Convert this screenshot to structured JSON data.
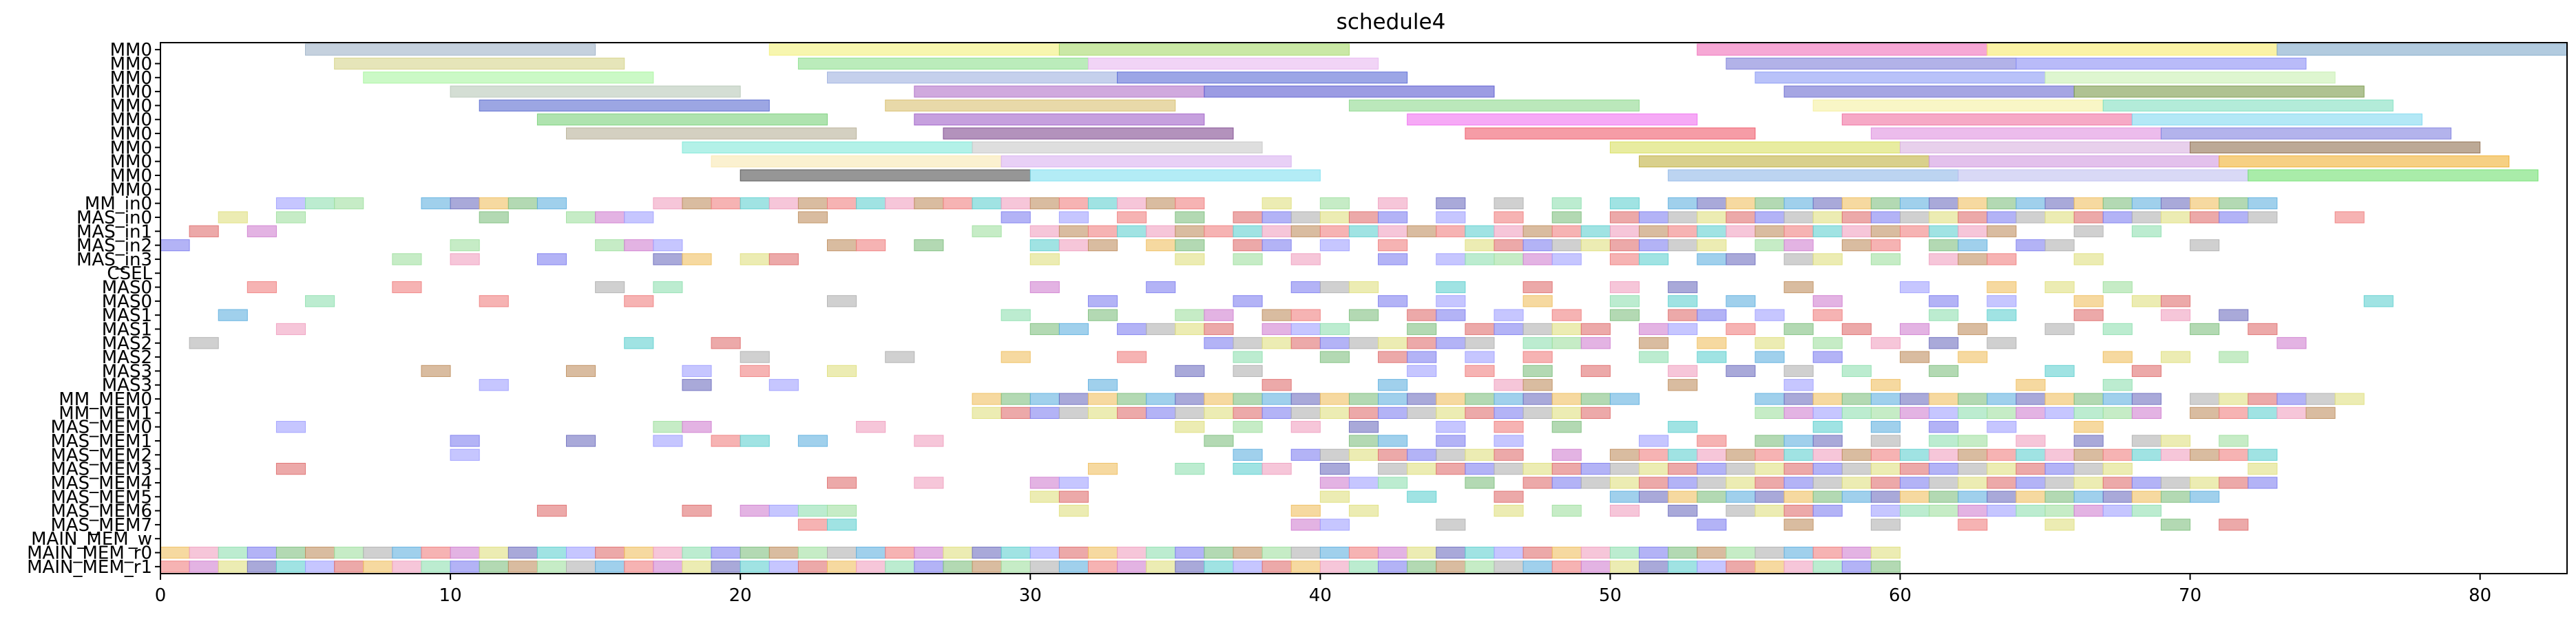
{
  "chart_data": {
    "type": "gantt",
    "title": "schedule4",
    "xlabel": "",
    "ylabel": "",
    "xlim": [
      0,
      83
    ],
    "x_ticks": [
      0,
      10,
      20,
      30,
      40,
      50,
      60,
      70,
      80
    ],
    "grid": false,
    "legend": "none",
    "rows": [
      "MM0",
      "MM0",
      "MM0",
      "MM0",
      "MM0",
      "MM0",
      "MM0",
      "MM0",
      "MM0",
      "MM0",
      "MM0",
      "MM_in0",
      "MAS_in0",
      "MAS_in1",
      "MAS_in2",
      "MAS_in3",
      "CSEL",
      "MAS0",
      "MAS0",
      "MAS1",
      "MAS1",
      "MAS2",
      "MAS2",
      "MAS3",
      "MAS3",
      "MM_MEM0",
      "MM_MEM1",
      "MAS_MEM0",
      "MAS_MEM1",
      "MAS_MEM2",
      "MAS_MEM3",
      "MAS_MEM4",
      "MAS_MEM5",
      "MAS_MEM6",
      "MAS_MEM7",
      "MAIN_MEM_w",
      "MAIN_MEM_r0",
      "MAIN_MEM_r1"
    ],
    "tasks": [
      {
        "row": 0,
        "start": 5,
        "end": 15,
        "color": "#9fb3c8"
      },
      {
        "row": 0,
        "start": 21,
        "end": 31,
        "color": "#f2f07a"
      },
      {
        "row": 0,
        "start": 31,
        "end": 41,
        "color": "#a6d96a"
      },
      {
        "row": 0,
        "start": 53,
        "end": 63,
        "color": "#f06eb9"
      },
      {
        "row": 0,
        "start": 63,
        "end": 73,
        "color": "#f7e96a"
      },
      {
        "row": 0,
        "start": 73,
        "end": 83,
        "color": "#7fa8c9"
      },
      {
        "row": 1,
        "start": 6,
        "end": 16,
        "color": "#d6d48a"
      },
      {
        "row": 1,
        "start": 22,
        "end": 32,
        "color": "#8ee08e"
      },
      {
        "row": 1,
        "start": 32,
        "end": 42,
        "color": "#e8b8f0"
      },
      {
        "row": 1,
        "start": 54,
        "end": 64,
        "color": "#7f7fd9"
      },
      {
        "row": 1,
        "start": 64,
        "end": 74,
        "color": "#8a8ef5"
      },
      {
        "row": 2,
        "start": 7,
        "end": 17,
        "color": "#a8f5a0"
      },
      {
        "row": 2,
        "start": 23,
        "end": 33,
        "color": "#9fb0e0"
      },
      {
        "row": 2,
        "start": 33,
        "end": 43,
        "color": "#5a6ad6"
      },
      {
        "row": 2,
        "start": 55,
        "end": 65,
        "color": "#8a9af5"
      },
      {
        "row": 2,
        "start": 65,
        "end": 75,
        "color": "#c8f0b0"
      },
      {
        "row": 3,
        "start": 10,
        "end": 20,
        "color": "#b8c8b8"
      },
      {
        "row": 3,
        "start": 26,
        "end": 36,
        "color": "#b070c8"
      },
      {
        "row": 3,
        "start": 36,
        "end": 46,
        "color": "#5a5ad0"
      },
      {
        "row": 3,
        "start": 56,
        "end": 66,
        "color": "#6a6ad0"
      },
      {
        "row": 3,
        "start": 66,
        "end": 76,
        "color": "#7a9a4a"
      },
      {
        "row": 4,
        "start": 11,
        "end": 21,
        "color": "#5a6ad0"
      },
      {
        "row": 4,
        "start": 25,
        "end": 35,
        "color": "#d8c070"
      },
      {
        "row": 4,
        "start": 41,
        "end": 51,
        "color": "#8ed88e"
      },
      {
        "row": 4,
        "start": 57,
        "end": 67,
        "color": "#f5f0a0"
      },
      {
        "row": 4,
        "start": 67,
        "end": 77,
        "color": "#80e0c0"
      },
      {
        "row": 5,
        "start": 13,
        "end": 23,
        "color": "#7ad07a"
      },
      {
        "row": 5,
        "start": 26,
        "end": 36,
        "color": "#a060c8"
      },
      {
        "row": 5,
        "start": 43,
        "end": 53,
        "color": "#f070f0"
      },
      {
        "row": 5,
        "start": 58,
        "end": 68,
        "color": "#f070a0"
      },
      {
        "row": 5,
        "start": 68,
        "end": 78,
        "color": "#80d8f0"
      },
      {
        "row": 6,
        "start": 14,
        "end": 24,
        "color": "#b8b098"
      },
      {
        "row": 6,
        "start": 27,
        "end": 37,
        "color": "#804a90"
      },
      {
        "row": 6,
        "start": 45,
        "end": 55,
        "color": "#f05a6a"
      },
      {
        "row": 6,
        "start": 59,
        "end": 69,
        "color": "#e090e0"
      },
      {
        "row": 6,
        "start": 69,
        "end": 79,
        "color": "#8080e0"
      },
      {
        "row": 7,
        "start": 18,
        "end": 28,
        "color": "#80e8d8"
      },
      {
        "row": 7,
        "start": 28,
        "end": 38,
        "color": "#c8c8c8"
      },
      {
        "row": 7,
        "start": 50,
        "end": 60,
        "color": "#d8e060"
      },
      {
        "row": 7,
        "start": 60,
        "end": 70,
        "color": "#d8b0e0"
      },
      {
        "row": 7,
        "start": 70,
        "end": 80,
        "color": "#907050"
      },
      {
        "row": 8,
        "start": 19,
        "end": 29,
        "color": "#f8e8b0"
      },
      {
        "row": 8,
        "start": 29,
        "end": 39,
        "color": "#d8b0f0"
      },
      {
        "row": 8,
        "start": 51,
        "end": 61,
        "color": "#c0b040"
      },
      {
        "row": 8,
        "start": 61,
        "end": 71,
        "color": "#d098e0"
      },
      {
        "row": 8,
        "start": 71,
        "end": 81,
        "color": "#f0b030"
      },
      {
        "row": 9,
        "start": 20,
        "end": 30,
        "color": "#505050"
      },
      {
        "row": 9,
        "start": 30,
        "end": 40,
        "color": "#80e0f0"
      },
      {
        "row": 9,
        "start": 52,
        "end": 62,
        "color": "#90b8e8"
      },
      {
        "row": 9,
        "start": 62,
        "end": 72,
        "color": "#c0c0f0"
      },
      {
        "row": 9,
        "start": 72,
        "end": 82,
        "color": "#70e070"
      },
      {
        "row": 37,
        "start": 0,
        "end": 60,
        "color": "#f07090",
        "pattern": "r1"
      },
      {
        "row": 36,
        "start": 0,
        "end": 60,
        "color": "#c0a0e0",
        "pattern": "r0"
      }
    ]
  }
}
